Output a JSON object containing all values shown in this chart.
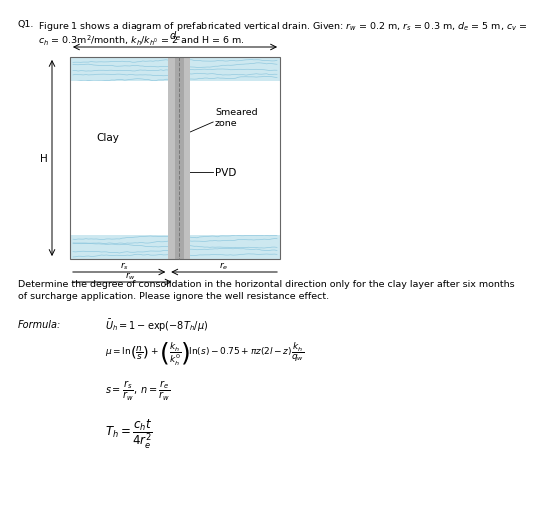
{
  "bg_color": "#ffffff",
  "title_q": "Q1.",
  "title_text": "Figure 1 shows a diagram of prefabricated vertical drain. Given: $r_w$ = 0.2 m, $r_s$ = 0.3 m, $d_e$ = 5 m, $c_v$ =",
  "title_text2": "$c_h$ = 0.3m²/month, $k_h$/$k_h$’ = 2 and H = 6 m.",
  "question": "Determine the degree of consolidation in the horizontal direction only for the clay layer after six months\nof surcharge application. Please ignore the well resistance effect.",
  "clay_color": "#cde8f0",
  "smear_color": "#c0c0c0",
  "pvd_color": "#a8a8a8",
  "pvd_dark": "#888888",
  "box_color": "#888888",
  "font_size_title": 6.8,
  "font_size_body": 6.8,
  "font_size_formula": 7.0,
  "font_size_formula_label": 7.0
}
